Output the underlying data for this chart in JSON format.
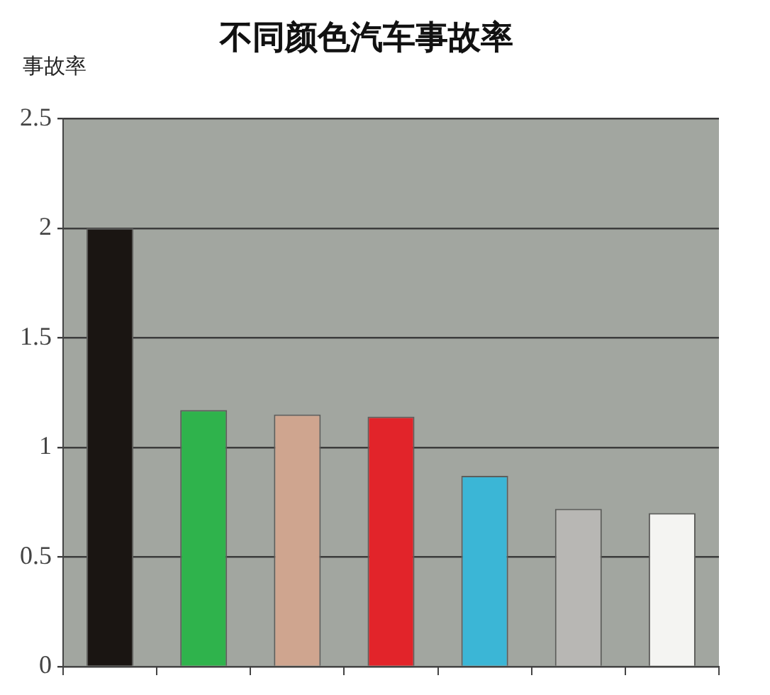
{
  "chart_data": {
    "type": "bar",
    "title": "不同颜色汽车事故率",
    "ylabel": "事故率",
    "categories": [
      null,
      null,
      null,
      null,
      null,
      null,
      null
    ],
    "values": [
      2.0,
      1.17,
      1.15,
      1.14,
      0.87,
      0.72,
      0.7
    ],
    "colors": [
      "#1a1512",
      "#2fb34c",
      "#cfa58f",
      "#e2242a",
      "#3bb6d6",
      "#b8b7b4",
      "#f4f4f2"
    ],
    "ylim": [
      0,
      2.5
    ],
    "yticks": [
      0,
      0.5,
      1,
      1.5,
      2,
      2.5
    ],
    "grid": "y",
    "tick_labels": "y"
  }
}
